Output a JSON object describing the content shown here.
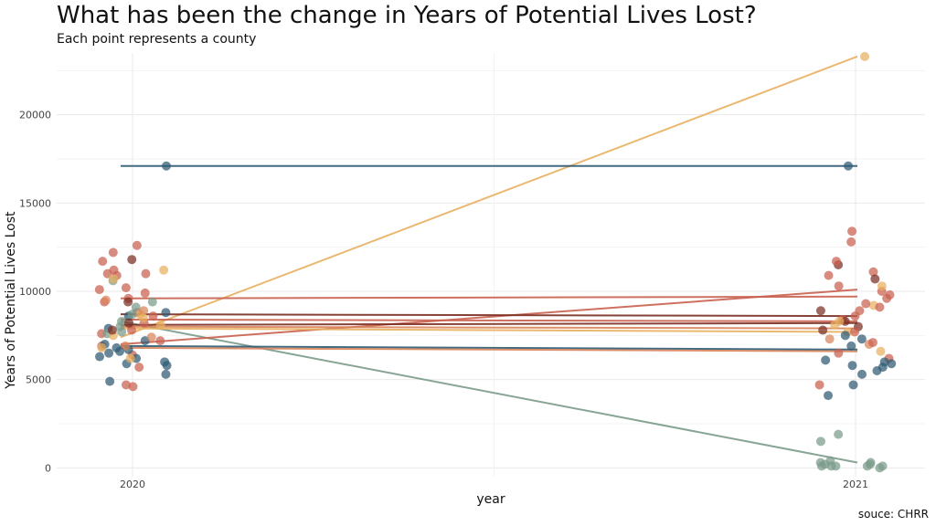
{
  "chart_data": {
    "type": "scatter",
    "title": "What has been the change in Years of Potential Lives Lost?",
    "subtitle": "Each point represents a county",
    "caption": "souce: CHRR",
    "xlabel": "year",
    "ylabel": "Years of Potential Lives Lost",
    "x_categories": [
      "2020",
      "2021"
    ],
    "ylim": [
      -500,
      23500
    ],
    "y_ticks": [
      0,
      5000,
      10000,
      15000,
      20000
    ],
    "grid": true,
    "legend": "none",
    "colors": [
      "#2e5a73",
      "#7a9b8a",
      "#7a2e22",
      "#c9604f",
      "#e8b060",
      "#d9835a"
    ],
    "series": [
      {
        "color_index": 4,
        "values": [
          7400,
          23300
        ]
      },
      {
        "color_index": 1,
        "values": [
          8300,
          300
        ]
      },
      {
        "color_index": 3,
        "values": [
          7000,
          10100
        ]
      },
      {
        "color_index": 3,
        "values": [
          9600,
          9700
        ]
      },
      {
        "color_index": 2,
        "values": [
          8700,
          8600
        ]
      },
      {
        "color_index": 3,
        "values": [
          8400,
          8300
        ]
      },
      {
        "color_index": 2,
        "values": [
          8100,
          8200
        ]
      },
      {
        "color_index": 5,
        "values": [
          8000,
          7900
        ]
      },
      {
        "color_index": 4,
        "values": [
          7900,
          7700
        ]
      },
      {
        "color_index": 0,
        "values": [
          6900,
          6700
        ]
      },
      {
        "color_index": 5,
        "values": [
          6800,
          6600
        ]
      },
      {
        "color_index": 0,
        "values": [
          17100,
          17100
        ]
      }
    ],
    "points_2020": [
      [
        2,
        11800
      ],
      [
        3,
        12600
      ],
      [
        3,
        9400
      ],
      [
        3,
        11200
      ],
      [
        3,
        9600
      ],
      [
        3,
        4600
      ],
      [
        3,
        6900
      ],
      [
        3,
        7200
      ],
      [
        3,
        5700
      ],
      [
        3,
        10200
      ],
      [
        3,
        10900
      ],
      [
        3,
        8600
      ],
      [
        3,
        8200
      ],
      [
        3,
        7600
      ],
      [
        3,
        6400
      ],
      [
        3,
        12200
      ],
      [
        3,
        9900
      ],
      [
        3,
        11000
      ],
      [
        3,
        8800
      ],
      [
        3,
        7800
      ],
      [
        0,
        6500
      ],
      [
        0,
        6300
      ],
      [
        0,
        6000
      ],
      [
        0,
        5800
      ],
      [
        0,
        7000
      ],
      [
        0,
        6700
      ],
      [
        0,
        5300
      ],
      [
        0,
        4900
      ],
      [
        0,
        5900
      ],
      [
        0,
        6200
      ],
      [
        0,
        7200
      ],
      [
        0,
        6800
      ],
      [
        0,
        7900
      ],
      [
        0,
        17100
      ],
      [
        0,
        8600
      ],
      [
        1,
        10600
      ],
      [
        1,
        9100
      ],
      [
        1,
        8000
      ],
      [
        1,
        7600
      ],
      [
        1,
        9400
      ],
      [
        1,
        7700
      ],
      [
        1,
        8300
      ],
      [
        4,
        6800
      ],
      [
        4,
        11200
      ],
      [
        4,
        10700
      ],
      [
        4,
        8100
      ],
      [
        4,
        6200
      ],
      [
        4,
        7500
      ],
      [
        4,
        8700
      ],
      [
        5,
        6900
      ],
      [
        5,
        7400
      ],
      [
        5,
        8900
      ],
      [
        5,
        9500
      ],
      [
        2,
        7800
      ],
      [
        2,
        8200
      ],
      [
        3,
        11700
      ],
      [
        3,
        10100
      ],
      [
        3,
        4700
      ],
      [
        3,
        11000
      ],
      [
        4,
        8500
      ],
      [
        0,
        8800
      ],
      [
        0,
        6600
      ],
      [
        2,
        9400
      ],
      [
        1,
        8700
      ]
    ],
    "points_2021": [
      [
        4,
        23300
      ],
      [
        0,
        17100
      ],
      [
        3,
        13400
      ],
      [
        3,
        12800
      ],
      [
        2,
        11500
      ],
      [
        3,
        11700
      ],
      [
        3,
        11100
      ],
      [
        3,
        10900
      ],
      [
        3,
        10300
      ],
      [
        2,
        10700
      ],
      [
        3,
        10000
      ],
      [
        3,
        9800
      ],
      [
        3,
        9600
      ],
      [
        4,
        10300
      ],
      [
        4,
        9200
      ],
      [
        3,
        9300
      ],
      [
        3,
        8900
      ],
      [
        2,
        8900
      ],
      [
        3,
        8400
      ],
      [
        2,
        8300
      ],
      [
        4,
        8100
      ],
      [
        4,
        7700
      ],
      [
        5,
        7000
      ],
      [
        3,
        7100
      ],
      [
        3,
        6500
      ],
      [
        3,
        6200
      ],
      [
        3,
        4700
      ],
      [
        0,
        7500
      ],
      [
        0,
        7300
      ],
      [
        0,
        6900
      ],
      [
        0,
        6100
      ],
      [
        0,
        5900
      ],
      [
        0,
        5800
      ],
      [
        0,
        5700
      ],
      [
        0,
        5300
      ],
      [
        0,
        4700
      ],
      [
        0,
        4100
      ],
      [
        0,
        5500
      ],
      [
        0,
        6000
      ],
      [
        1,
        1900
      ],
      [
        1,
        1500
      ],
      [
        1,
        400
      ],
      [
        1,
        300
      ],
      [
        1,
        200
      ],
      [
        1,
        100
      ],
      [
        1,
        100
      ],
      [
        1,
        100
      ],
      [
        1,
        0
      ],
      [
        1,
        100
      ],
      [
        1,
        100
      ],
      [
        1,
        200
      ],
      [
        1,
        300
      ],
      [
        2,
        8000
      ],
      [
        3,
        9100
      ],
      [
        4,
        6600
      ],
      [
        5,
        7300
      ],
      [
        3,
        8600
      ],
      [
        2,
        7800
      ],
      [
        4,
        8300
      ],
      [
        3,
        7700
      ]
    ]
  }
}
